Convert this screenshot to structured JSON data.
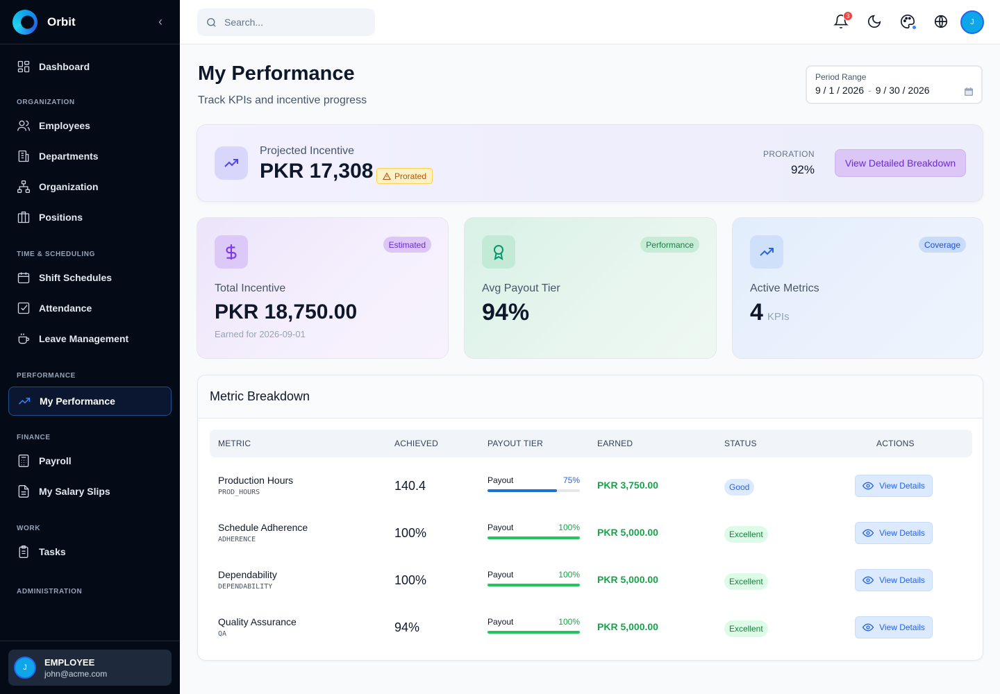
{
  "app": {
    "name": "Orbit"
  },
  "sidebar": {
    "dashboard": "Dashboard",
    "sections": {
      "organization": "ORGANIZATION",
      "time": "TIME & SCHEDULING",
      "performance": "PERFORMANCE",
      "finance": "FINANCE",
      "work": "WORK",
      "administration": "ADMINISTRATION"
    },
    "items": {
      "employees": "Employees",
      "departments": "Departments",
      "organization": "Organization",
      "positions": "Positions",
      "shift_schedules": "Shift Schedules",
      "attendance": "Attendance",
      "leave_management": "Leave Management",
      "my_performance": "My Performance",
      "payroll": "Payroll",
      "my_salary_slips": "My Salary Slips",
      "tasks": "Tasks"
    },
    "user": {
      "initial": "J",
      "role": "EMPLOYEE",
      "email": "john@acme.com"
    }
  },
  "topbar": {
    "search_placeholder": "Search...",
    "notification_count": "3",
    "avatar_initial": "J"
  },
  "page": {
    "title": "My Performance",
    "subtitle": "Track KPIs and incentive progress",
    "period": {
      "label": "Period Range",
      "start": "9 / 1 / 2026",
      "separator": "-",
      "end": "9 / 30 / 2026"
    }
  },
  "hero": {
    "label": "Projected Incentive",
    "value": "PKR 17,308",
    "badge": "Prorated",
    "proration_label": "PRORATION",
    "proration_value": "92%",
    "button": "View Detailed Breakdown"
  },
  "kpis": [
    {
      "tag": "Estimated",
      "label": "Total Incentive",
      "value": "PKR 18,750.00",
      "sub": "Earned for 2026-09-01"
    },
    {
      "tag": "Performance",
      "label": "Avg Payout Tier",
      "value": "94%"
    },
    {
      "tag": "Coverage",
      "label": "Active Metrics",
      "value": "4",
      "unit": "KPIs"
    }
  ],
  "table": {
    "title": "Metric Breakdown",
    "headers": [
      "METRIC",
      "ACHIEVED",
      "PAYOUT TIER",
      "EARNED",
      "STATUS",
      "ACTIONS"
    ],
    "payout_label": "Payout",
    "action_label": "View Details",
    "rows": [
      {
        "name": "Production Hours",
        "code": "PROD_HOURS",
        "achieved": "140.4",
        "payout": "75%",
        "payout_fraction": 0.75,
        "earned": "PKR 3,750.00",
        "status": "Good"
      },
      {
        "name": "Schedule Adherence",
        "code": "ADHERENCE",
        "achieved": "100%",
        "payout": "100%",
        "payout_fraction": 1.0,
        "earned": "PKR 5,000.00",
        "status": "Excellent"
      },
      {
        "name": "Dependability",
        "code": "DEPENDABILITY",
        "achieved": "100%",
        "payout": "100%",
        "payout_fraction": 1.0,
        "earned": "PKR 5,000.00",
        "status": "Excellent"
      },
      {
        "name": "Quality Assurance",
        "code": "QA",
        "achieved": "94%",
        "payout": "100%",
        "payout_fraction": 1.0,
        "earned": "PKR 5,000.00",
        "status": "Excellent"
      }
    ]
  },
  "colors": {
    "accent": "#2563eb",
    "good_bar": "#1d6fd6",
    "excellent_bar": "#22c55e",
    "good_badge_bg": "#dbeafe",
    "good_badge_text": "#2563eb",
    "excellent_badge_bg": "#dcfce7",
    "excellent_badge_text": "#15803d"
  }
}
